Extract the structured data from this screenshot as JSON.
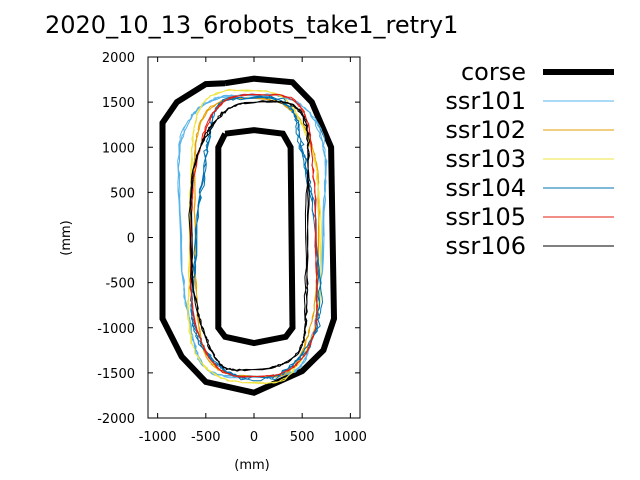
{
  "chart_data": {
    "type": "line",
    "title": "2020_10_13_6robots_take1_retry1",
    "xlabel": "(mm)",
    "ylabel": "(mm)",
    "xlim": [
      -1100,
      1100
    ],
    "ylim": [
      -2000,
      2000
    ],
    "xticks": [
      -1000,
      -500,
      0,
      500,
      1000
    ],
    "yticks": [
      -2000,
      -1500,
      -1000,
      -500,
      0,
      500,
      1000,
      1500,
      2000
    ],
    "xtick_labels": [
      "-1000",
      "-500",
      "0",
      "500",
      "1000"
    ],
    "ytick_labels": [
      "-2000",
      "-1500",
      "-1000",
      "-500",
      "0",
      "500",
      "1000",
      "1500",
      "2000"
    ],
    "grid": false,
    "legend_position": "right",
    "course": {
      "name": "corse",
      "color": "#000000",
      "outer": [
        [
          -300,
          1710
        ],
        [
          0,
          1760
        ],
        [
          400,
          1720
        ],
        [
          600,
          1500
        ],
        [
          800,
          1000
        ],
        [
          830,
          -900
        ],
        [
          720,
          -1250
        ],
        [
          500,
          -1480
        ],
        [
          0,
          -1720
        ],
        [
          -500,
          -1600
        ],
        [
          -750,
          -1320
        ],
        [
          -950,
          -900
        ],
        [
          -950,
          1270
        ],
        [
          -800,
          1500
        ],
        [
          -500,
          1700
        ],
        [
          -300,
          1710
        ]
      ],
      "inner": [
        [
          -300,
          1150
        ],
        [
          0,
          1190
        ],
        [
          300,
          1150
        ],
        [
          380,
          1000
        ],
        [
          400,
          -1000
        ],
        [
          330,
          -1100
        ],
        [
          0,
          -1170
        ],
        [
          -300,
          -1100
        ],
        [
          -370,
          -1000
        ],
        [
          -370,
          1000
        ],
        [
          -300,
          1150
        ]
      ]
    },
    "series": [
      {
        "name": "ssr101",
        "color": "#56b4e9",
        "rx": 740,
        "ry": 1620,
        "cx": -20,
        "cy": 20,
        "laps": 3,
        "jitter": 60
      },
      {
        "name": "ssr102",
        "color": "#e69f00",
        "rx": 640,
        "ry": 1560,
        "cx": 0,
        "cy": 0,
        "laps": 2,
        "jitter": 40
      },
      {
        "name": "ssr103",
        "color": "#f0e442",
        "rx": 680,
        "ry": 1600,
        "cx": -30,
        "cy": 10,
        "laps": 2,
        "jitter": 50
      },
      {
        "name": "ssr104",
        "color": "#0072b2",
        "rx": 620,
        "ry": 1480,
        "cx": 10,
        "cy": 0,
        "laps": 3,
        "jitter": 90
      },
      {
        "name": "ssr105",
        "color": "#e51e10",
        "rx": 650,
        "ry": 1540,
        "cx": 20,
        "cy": 20,
        "laps": 2,
        "jitter": 40
      },
      {
        "name": "ssr106",
        "color": "#000000",
        "rx": 600,
        "ry": 1500,
        "cx": 0,
        "cy": 20,
        "laps": 3,
        "jitter": 60
      }
    ]
  }
}
